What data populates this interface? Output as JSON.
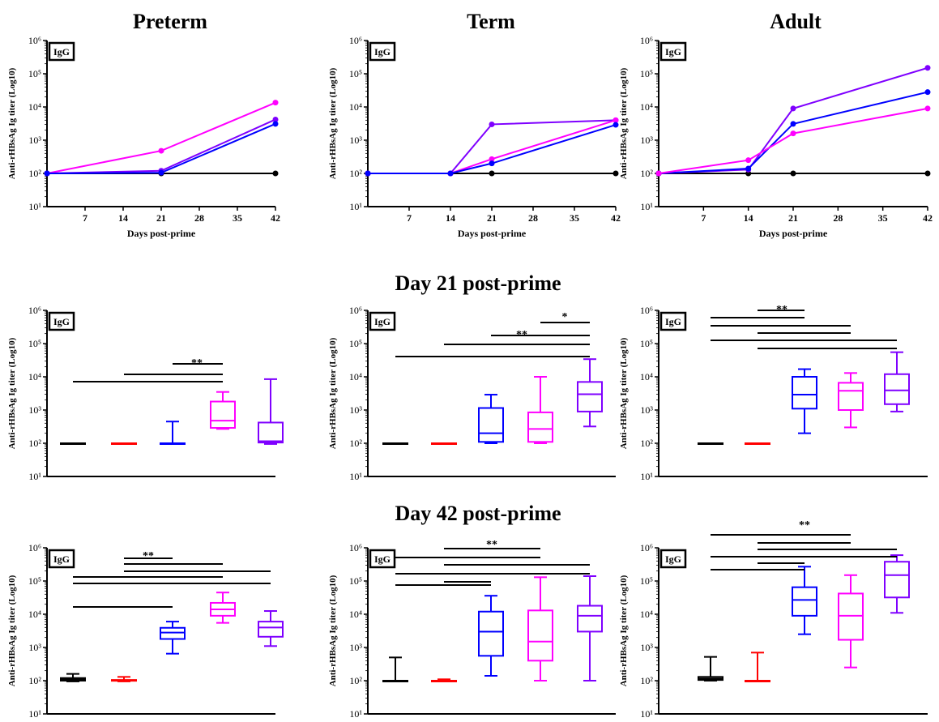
{
  "column_titles": [
    "Preterm",
    "Term",
    "Adult"
  ],
  "row_titles": [
    "",
    "Day 21 post-prime",
    "Day 42 post-prime"
  ],
  "colors": {
    "black": "#000000",
    "red": "#ff0000",
    "blue": "#0000ff",
    "magenta": "#ff00ff",
    "purple": "#7f00ff"
  },
  "chart_data": [
    {
      "type": "line",
      "title": "Preterm",
      "badge": "IgG",
      "xlabel": "Days post-prime",
      "ylabel": "Anti-rHBsAg Ig titer (Log10)",
      "xlim": [
        0,
        42
      ],
      "xticks": [
        7,
        14,
        21,
        28,
        35,
        42
      ],
      "ylog": true,
      "ylim_exp": [
        1,
        6
      ],
      "series": [
        {
          "color": "#000000",
          "x": [
            0,
            21,
            42
          ],
          "y": [
            100,
            100,
            100
          ]
        },
        {
          "color": "#ff00ff",
          "x": [
            0,
            21,
            42
          ],
          "y": [
            100,
            480,
            13500
          ]
        },
        {
          "color": "#7f00ff",
          "x": [
            0,
            21,
            42
          ],
          "y": [
            100,
            120,
            4200
          ]
        },
        {
          "color": "#0000ff",
          "x": [
            0,
            21,
            42
          ],
          "y": [
            100,
            105,
            3100
          ]
        }
      ]
    },
    {
      "type": "line",
      "title": "Term",
      "badge": "IgG",
      "xlabel": "Days post-prime",
      "ylabel": "Anti-rHBsAg Ig titer (Log10)",
      "xlim": [
        0,
        42
      ],
      "xticks": [
        7,
        14,
        21,
        28,
        35,
        42
      ],
      "ylog": true,
      "ylim_exp": [
        1,
        6
      ],
      "series": [
        {
          "color": "#000000",
          "x": [
            0,
            14,
            21,
            42
          ],
          "y": [
            100,
            100,
            100,
            100
          ]
        },
        {
          "color": "#7f00ff",
          "x": [
            0,
            14,
            21,
            42
          ],
          "y": [
            100,
            100,
            3000,
            4000
          ]
        },
        {
          "color": "#ff00ff",
          "x": [
            0,
            14,
            21,
            42
          ],
          "y": [
            100,
            100,
            270,
            4000
          ]
        },
        {
          "color": "#0000ff",
          "x": [
            0,
            14,
            21,
            42
          ],
          "y": [
            100,
            100,
            200,
            2900
          ]
        }
      ]
    },
    {
      "type": "line",
      "title": "Adult",
      "badge": "IgG",
      "xlabel": "Days post-prime",
      "ylabel": "Anti-rHBsAg Ig titer (Log10)",
      "xlim": [
        0,
        42
      ],
      "xticks": [
        7,
        14,
        21,
        28,
        35,
        42
      ],
      "ylog": true,
      "ylim_exp": [
        1,
        6
      ],
      "series": [
        {
          "color": "#000000",
          "x": [
            0,
            14,
            21,
            42
          ],
          "y": [
            100,
            100,
            100,
            100
          ]
        },
        {
          "color": "#7f00ff",
          "x": [
            0,
            14,
            21,
            42
          ],
          "y": [
            100,
            130,
            9000,
            150000
          ]
        },
        {
          "color": "#0000ff",
          "x": [
            0,
            14,
            21,
            42
          ],
          "y": [
            100,
            140,
            3100,
            28000
          ]
        },
        {
          "color": "#ff00ff",
          "x": [
            0,
            14,
            21,
            42
          ],
          "y": [
            100,
            250,
            1600,
            9000
          ]
        }
      ]
    },
    {
      "type": "box",
      "title": "Day 21 post-prime",
      "column": "Preterm",
      "badge": "IgG",
      "ylabel": "Anti-rHBsAg Ig titer (Log10)",
      "ylog": true,
      "ylim_exp": [
        1,
        6
      ],
      "groups": [
        {
          "color": "#000000",
          "min": 100,
          "q1": 100,
          "median": 100,
          "q3": 100,
          "max": 100
        },
        {
          "color": "#ff0000",
          "min": 100,
          "q1": 100,
          "median": 100,
          "q3": 100,
          "max": 100
        },
        {
          "color": "#0000ff",
          "min": 100,
          "q1": 100,
          "median": 100,
          "q3": 100,
          "max": 450
        },
        {
          "color": "#ff00ff",
          "min": 270,
          "q1": 290,
          "median": 480,
          "q3": 1800,
          "max": 3500
        },
        {
          "color": "#7f00ff",
          "min": 95,
          "q1": 105,
          "median": 115,
          "q3": 420,
          "max": 8500
        }
      ],
      "significance": [
        {
          "label": "**"
        }
      ],
      "brackets": [
        [
          3,
          4
        ],
        [
          2,
          4
        ],
        [
          1,
          4
        ]
      ]
    },
    {
      "type": "box",
      "title": "Day 21 post-prime",
      "column": "Term",
      "badge": "IgG",
      "ylabel": "Anti-rHBsAg Ig titer (Log10)",
      "ylog": true,
      "ylim_exp": [
        1,
        6
      ],
      "groups": [
        {
          "color": "#000000",
          "min": 100,
          "q1": 100,
          "median": 100,
          "q3": 100,
          "max": 100
        },
        {
          "color": "#ff0000",
          "min": 100,
          "q1": 100,
          "median": 100,
          "q3": 100,
          "max": 100
        },
        {
          "color": "#0000ff",
          "min": 100,
          "q1": 110,
          "median": 200,
          "q3": 1150,
          "max": 2900
        },
        {
          "color": "#ff00ff",
          "min": 100,
          "q1": 110,
          "median": 270,
          "q3": 850,
          "max": 10000
        },
        {
          "color": "#7f00ff",
          "min": 320,
          "q1": 900,
          "median": 3000,
          "q3": 7000,
          "max": 34000
        }
      ],
      "significance": [
        {
          "label": "*"
        },
        {
          "label": "**"
        }
      ],
      "brackets": [
        [
          4,
          5
        ],
        [
          3,
          5
        ],
        [
          2,
          5
        ],
        [
          1,
          5
        ]
      ]
    },
    {
      "type": "box",
      "title": "Day 21 post-prime",
      "column": "Adult",
      "badge": "IgG",
      "ylabel": "Anti-rHBsAg Ig titer (Log10)",
      "ylog": true,
      "ylim_exp": [
        1,
        6
      ],
      "groups": [
        {
          "color": "#000000",
          "min": 100,
          "q1": 100,
          "median": 100,
          "q3": 100,
          "max": 100
        },
        {
          "color": "#ff0000",
          "min": 100,
          "q1": 100,
          "median": 100,
          "q3": 100,
          "max": 100
        },
        {
          "color": "#0000ff",
          "min": 200,
          "q1": 1100,
          "median": 2900,
          "q3": 10000,
          "max": 17000
        },
        {
          "color": "#ff00ff",
          "min": 300,
          "q1": 1000,
          "median": 3800,
          "q3": 6600,
          "max": 13000
        },
        {
          "color": "#7f00ff",
          "min": 900,
          "q1": 1500,
          "median": 3900,
          "q3": 12000,
          "max": 55000
        }
      ],
      "significance": [
        {
          "label": "**"
        }
      ],
      "brackets": [
        [
          2,
          3
        ],
        [
          1,
          3
        ],
        [
          1,
          4
        ],
        [
          2,
          4
        ],
        [
          1,
          5
        ],
        [
          2,
          5
        ]
      ]
    },
    {
      "type": "box",
      "title": "Day 42 post-prime",
      "column": "Preterm",
      "badge": "IgG",
      "ylabel": "Anti-rHBsAg Ig titer (Log10)",
      "ylog": true,
      "ylim_exp": [
        1,
        6
      ],
      "groups": [
        {
          "color": "#000000",
          "min": 95,
          "q1": 100,
          "median": 110,
          "q3": 120,
          "max": 160
        },
        {
          "color": "#ff0000",
          "min": 95,
          "q1": 100,
          "median": 100,
          "q3": 105,
          "max": 130
        },
        {
          "color": "#0000ff",
          "min": 650,
          "q1": 1800,
          "median": 2800,
          "q3": 3900,
          "max": 6000
        },
        {
          "color": "#ff00ff",
          "min": 5500,
          "q1": 9000,
          "median": 14000,
          "q3": 22000,
          "max": 45000
        },
        {
          "color": "#7f00ff",
          "min": 1100,
          "q1": 2100,
          "median": 4000,
          "q3": 6000,
          "max": 12500
        }
      ],
      "significance": [
        {
          "label": "**"
        }
      ],
      "brackets": [
        [
          2,
          3
        ],
        [
          2,
          4
        ],
        [
          2,
          5
        ],
        [
          1,
          4
        ],
        [
          1,
          5
        ],
        [
          1,
          3
        ]
      ]
    },
    {
      "type": "box",
      "title": "Day 42 post-prime",
      "column": "Term",
      "badge": "IgG",
      "ylabel": "Anti-rHBsAg Ig titer (Log10)",
      "ylog": true,
      "ylim_exp": [
        1,
        6
      ],
      "groups": [
        {
          "color": "#000000",
          "min": 100,
          "q1": 100,
          "median": 100,
          "q3": 100,
          "max": 500
        },
        {
          "color": "#ff0000",
          "min": 95,
          "q1": 100,
          "median": 100,
          "q3": 100,
          "max": 110
        },
        {
          "color": "#0000ff",
          "min": 140,
          "q1": 560,
          "median": 3000,
          "q3": 12000,
          "max": 36000
        },
        {
          "color": "#ff00ff",
          "min": 100,
          "q1": 400,
          "median": 1500,
          "q3": 13000,
          "max": 130000
        },
        {
          "color": "#7f00ff",
          "min": 100,
          "q1": 3000,
          "median": 9000,
          "q3": 18000,
          "max": 140000
        }
      ],
      "significance": [
        {
          "label": "**"
        }
      ],
      "brackets": [
        [
          2,
          4
        ],
        [
          1,
          4
        ],
        [
          2,
          5
        ],
        [
          1,
          5
        ],
        [
          2,
          3
        ],
        [
          1,
          3
        ]
      ]
    },
    {
      "type": "box",
      "title": "Day 42 post-prime",
      "column": "Adult",
      "badge": "IgG",
      "ylabel": "Anti-rHBsAg Ig titer (Log10)",
      "ylog": true,
      "ylim_exp": [
        1,
        6
      ],
      "groups": [
        {
          "color": "#000000",
          "min": 100,
          "q1": 105,
          "median": 115,
          "q3": 130,
          "max": 520
        },
        {
          "color": "#ff0000",
          "min": 100,
          "q1": 100,
          "median": 100,
          "q3": 100,
          "max": 700
        },
        {
          "color": "#0000ff",
          "min": 2500,
          "q1": 9000,
          "median": 27000,
          "q3": 65000,
          "max": 270000
        },
        {
          "color": "#ff00ff",
          "min": 250,
          "q1": 1700,
          "median": 9000,
          "q3": 42000,
          "max": 150000
        },
        {
          "color": "#7f00ff",
          "min": 11000,
          "q1": 32000,
          "median": 150000,
          "q3": 380000,
          "max": 600000
        }
      ],
      "significance": [
        {
          "label": "**"
        }
      ],
      "brackets": [
        [
          1,
          4
        ],
        [
          2,
          4
        ],
        [
          2,
          5
        ],
        [
          1,
          5
        ],
        [
          2,
          3
        ],
        [
          1,
          3
        ]
      ]
    }
  ]
}
